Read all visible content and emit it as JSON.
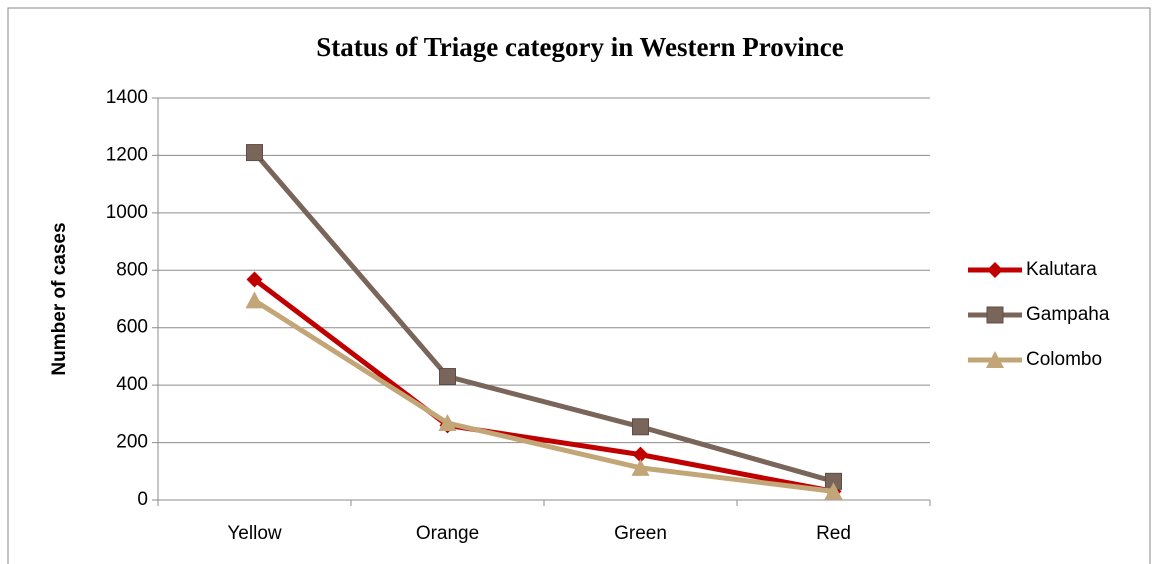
{
  "chart_data": {
    "type": "line",
    "title": "Status of Triage category in Western Province",
    "y_label": "Number of cases",
    "categories": [
      "Yellow",
      "Orange",
      "Green",
      "Red"
    ],
    "series": [
      {
        "name": "Kalutara",
        "color": "#c00000",
        "marker": "diamond",
        "values": [
          768,
          260,
          158,
          30
        ]
      },
      {
        "name": "Gampaha",
        "color": "#7a655a",
        "marker": "square",
        "values": [
          1210,
          430,
          255,
          65
        ]
      },
      {
        "name": "Colombo",
        "color": "#c3a677",
        "marker": "triangle",
        "values": [
          695,
          268,
          112,
          30
        ]
      }
    ],
    "ylim": [
      0,
      1400
    ],
    "yticks": [
      0,
      200,
      400,
      600,
      800,
      1000,
      1200,
      1400
    ],
    "grid": true,
    "legend": "right"
  }
}
